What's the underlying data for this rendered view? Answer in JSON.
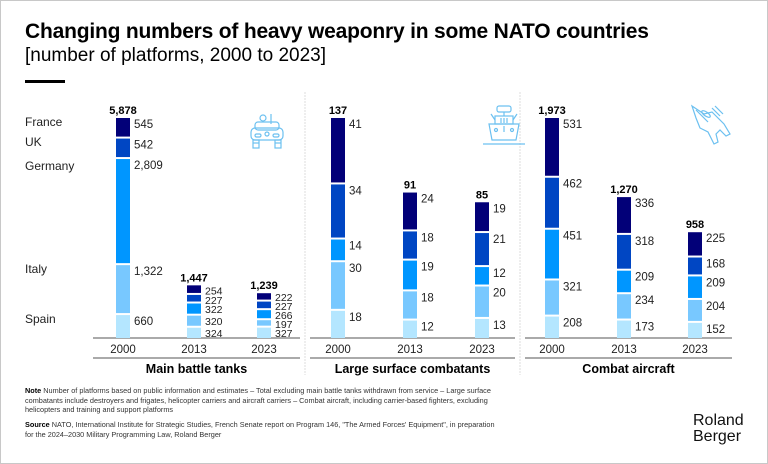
{
  "header": {
    "title": "Changing numbers of heavy weaponry in some NATO countries",
    "subtitle": "[number of platforms, 2000 to 2023]"
  },
  "footer": {
    "note_label": "Note",
    "note_text": "Number of platforms based on public information and estimates – Total excluding main battle tanks withdrawn from service – Large surface combatants include destroyers and frigates, helicopter carriers and aircraft carriers – Combat aircraft, including carrier-based fighters, excluding helicopters and training and support platforms",
    "source_label": "Source",
    "source_text": "NATO, International Institute for Strategic Studies, French Senate report on Program 146, \"The Armed Forces' Equipment\", in preparation for the 2024–2030 Military Programming Law, Roland Berger",
    "logo_line1": "Roland",
    "logo_line2": "Berger"
  },
  "colors": {
    "France": "#020078",
    "UK": "#0046c3",
    "Germany": "#0096ff",
    "Italy": "#78c8ff",
    "Spain": "#b4e6ff",
    "icon": "#6cc0f0"
  },
  "chart_data": [
    {
      "type": "bar",
      "stacked": true,
      "title": "Main battle tanks",
      "icon": "tank-icon",
      "categories": [
        "2000",
        "2013",
        "2023"
      ],
      "totals": [
        5878,
        1447,
        1239
      ],
      "total_labels": [
        "5,878",
        "1,447",
        "1,239"
      ],
      "series": [
        {
          "name": "France",
          "values": [
            545,
            254,
            222
          ],
          "labels": [
            "545",
            "254",
            "222"
          ]
        },
        {
          "name": "UK",
          "values": [
            542,
            227,
            227
          ],
          "labels": [
            "542",
            "227",
            "227"
          ]
        },
        {
          "name": "Germany",
          "values": [
            2809,
            322,
            266
          ],
          "labels": [
            "2,809",
            "322",
            "266"
          ]
        },
        {
          "name": "Italy",
          "values": [
            1322,
            320,
            197
          ],
          "labels": [
            "1,322",
            "320",
            "197"
          ]
        },
        {
          "name": "Spain",
          "values": [
            660,
            324,
            327
          ],
          "labels": [
            "660",
            "324",
            "327"
          ]
        }
      ],
      "legend": "left"
    },
    {
      "type": "bar",
      "stacked": true,
      "title": "Large surface combatants",
      "icon": "ship-icon",
      "categories": [
        "2000",
        "2013",
        "2023"
      ],
      "totals": [
        137,
        91,
        85
      ],
      "total_labels": [
        "137",
        "91",
        "85"
      ],
      "series": [
        {
          "name": "France",
          "values": [
            41,
            24,
            19
          ],
          "labels": [
            "41",
            "24",
            "19"
          ]
        },
        {
          "name": "UK",
          "values": [
            34,
            18,
            21
          ],
          "labels": [
            "34",
            "18",
            "21"
          ]
        },
        {
          "name": "Germany",
          "values": [
            14,
            19,
            12
          ],
          "labels": [
            "14",
            "19",
            "12"
          ]
        },
        {
          "name": "Italy",
          "values": [
            30,
            18,
            20
          ],
          "labels": [
            "30",
            "18",
            "20"
          ]
        },
        {
          "name": "Spain",
          "values": [
            18,
            12,
            13
          ],
          "labels": [
            "18",
            "12",
            "13"
          ]
        }
      ]
    },
    {
      "type": "bar",
      "stacked": true,
      "title": "Combat aircraft",
      "icon": "fighter-jet-icon",
      "categories": [
        "2000",
        "2013",
        "2023"
      ],
      "totals": [
        1973,
        1270,
        958
      ],
      "total_labels": [
        "1,973",
        "1,270",
        "958"
      ],
      "series": [
        {
          "name": "France",
          "values": [
            531,
            336,
            225
          ],
          "labels": [
            "531",
            "336",
            "225"
          ]
        },
        {
          "name": "UK",
          "values": [
            462,
            318,
            168
          ],
          "labels": [
            "462",
            "318",
            "168"
          ]
        },
        {
          "name": "Germany",
          "values": [
            451,
            209,
            209
          ],
          "labels": [
            "451",
            "209",
            "209"
          ]
        },
        {
          "name": "Italy",
          "values": [
            321,
            234,
            204
          ],
          "labels": [
            "321",
            "234",
            "204"
          ]
        },
        {
          "name": "Spain",
          "values": [
            208,
            173,
            152
          ],
          "labels": [
            "208",
            "173",
            "152"
          ]
        }
      ]
    }
  ],
  "legend_labels": [
    "France",
    "UK",
    "Germany",
    "Italy",
    "Spain"
  ]
}
